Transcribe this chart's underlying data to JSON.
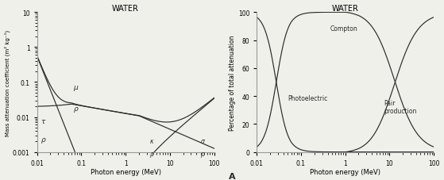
{
  "title1": "WATER",
  "title2": "WATER",
  "xlabel": "Photon energy (MeV)",
  "ylabel1": "Mass attenuation coefficient (m² kg⁻¹)",
  "ylabel2": "Percentage of total attenuation",
  "xlim": [
    0.01,
    100
  ],
  "ylim1": [
    0.001,
    10
  ],
  "ylim2": [
    0,
    100
  ],
  "label_A": "A",
  "bg_color": "#f0f0eb",
  "line_color": "#2a2a2a"
}
